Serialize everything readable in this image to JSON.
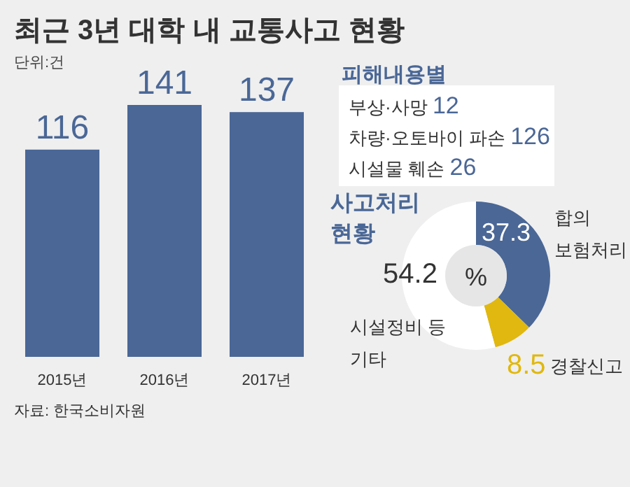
{
  "chart_data": [
    {
      "type": "bar",
      "title": "최근 3년 대학 내 교통사고 현황",
      "subtitle": "단위:건",
      "categories": [
        "2015년",
        "2016년",
        "2017년"
      ],
      "values": [
        116,
        141,
        137
      ],
      "color": "#4a6796",
      "data_labels": true,
      "relative": false,
      "annotations": [
        "자료: 한국소비자원"
      ]
    },
    {
      "type": "other",
      "title": "피해내용별",
      "categories": [
        "부상·사망",
        "차량·오토바이 파손",
        "시설물 훼손"
      ],
      "values": [
        12,
        126,
        26
      ],
      "data_labels": true
    },
    {
      "type": "donut",
      "title": "사고처리 현황",
      "categories": [
        "합의 보험처리",
        "경찰신고",
        "시설정비 등 기타"
      ],
      "values": [
        37.3,
        8.5,
        54.2
      ],
      "colors": [
        "#4a6796",
        "#e0b80f",
        "#ffffff"
      ],
      "data_labels": true,
      "annotations": [
        "%"
      ]
    }
  ]
}
